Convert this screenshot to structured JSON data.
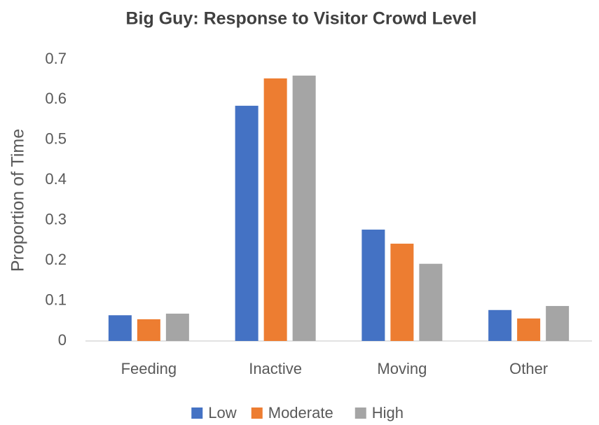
{
  "chart_data": {
    "type": "bar",
    "title": "Big Guy: Response to Visitor Crowd Level",
    "y_label": "Proportion of Time",
    "categories": [
      "Feeding",
      "Inactive",
      "Moving",
      "Other"
    ],
    "series": [
      {
        "name": "Low",
        "color": "#4472c4",
        "values": [
          0.064,
          0.585,
          0.277,
          0.077
        ]
      },
      {
        "name": "Moderate",
        "color": "#ed7d31",
        "values": [
          0.054,
          0.653,
          0.242,
          0.056
        ]
      },
      {
        "name": "High",
        "color": "#a5a5a5",
        "values": [
          0.068,
          0.66,
          0.192,
          0.087
        ]
      }
    ],
    "ylim": [
      0,
      0.7
    ],
    "yticks": [
      0,
      0.1,
      0.2,
      0.3,
      0.4,
      0.5,
      0.6,
      0.7
    ],
    "grid": false,
    "legend": "bottom"
  }
}
